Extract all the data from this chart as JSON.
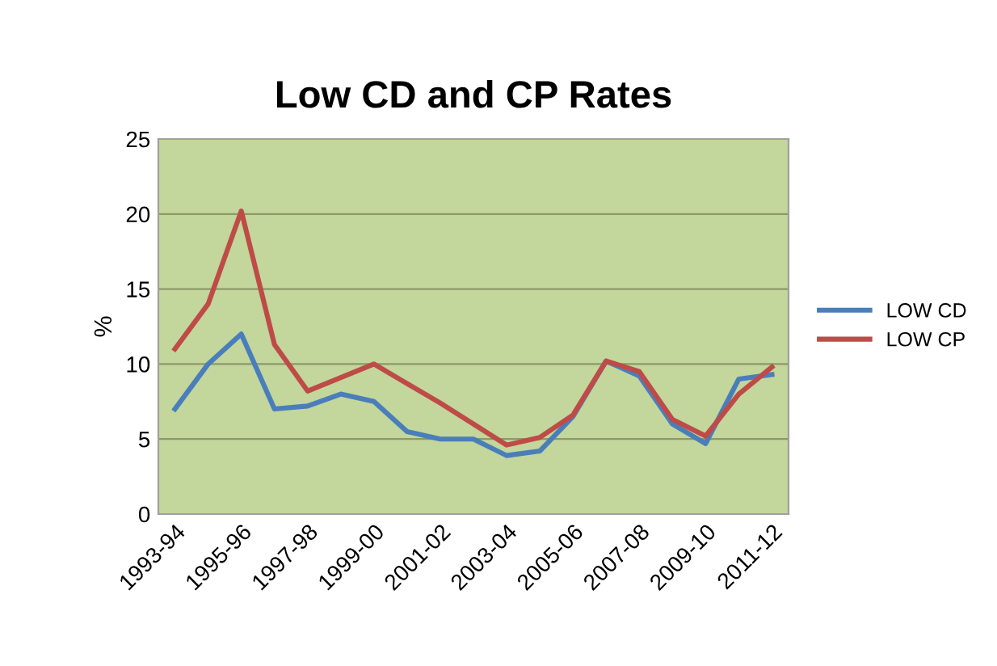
{
  "chart_data": {
    "type": "line",
    "title": "Low CD and CP Rates",
    "ylabel": "%",
    "categories": [
      "1993-94",
      null,
      "1995-96",
      null,
      "1997-98",
      null,
      "1999-00",
      null,
      "2001-02",
      null,
      "2003-04",
      null,
      "2005-06",
      null,
      "2007-08",
      null,
      "2009-10",
      null,
      "2011-12"
    ],
    "series": [
      {
        "name": "LOW CD",
        "color": "#4a7ebb",
        "values": [
          7,
          10,
          12,
          7,
          7.2,
          8,
          7.5,
          5.5,
          5,
          5,
          3.9,
          4.2,
          6.5,
          10.2,
          9.2,
          6,
          4.7,
          9,
          9.3
        ]
      },
      {
        "name": "LOW CP",
        "color": "#be4b48",
        "values": [
          11,
          14,
          20.2,
          11.3,
          8.2,
          9.1,
          10,
          8.7,
          7.4,
          6,
          4.6,
          5.1,
          6.6,
          10.2,
          9.5,
          6.3,
          5.2,
          8,
          9.8
        ]
      }
    ],
    "ylim": [
      0,
      25
    ],
    "yticks": [
      0,
      5,
      10,
      15,
      20,
      25
    ],
    "grid": "y",
    "legend": "right"
  }
}
